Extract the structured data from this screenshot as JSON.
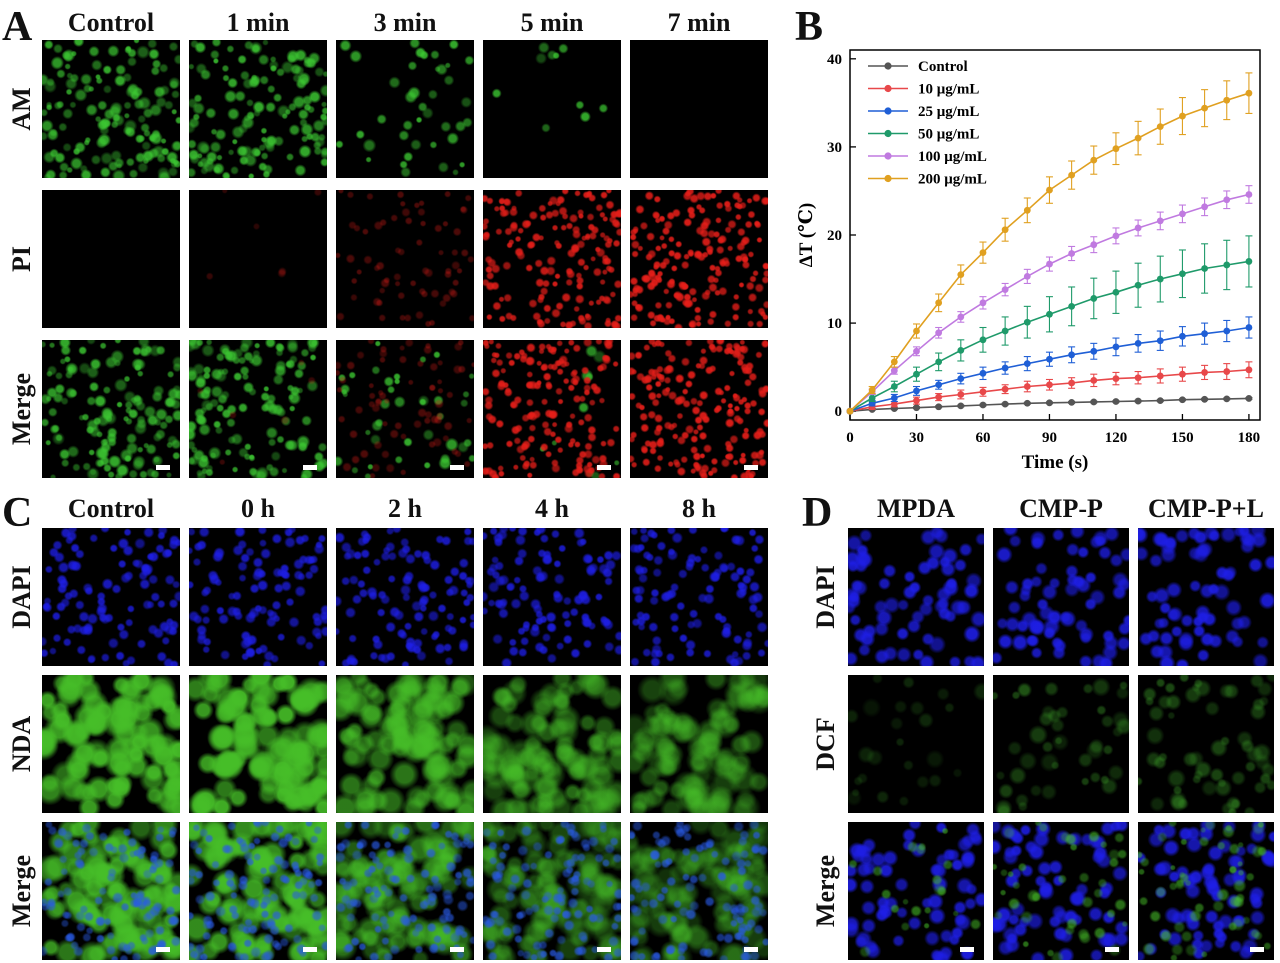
{
  "panels": {
    "A": {
      "label": "A",
      "columns": [
        "Control",
        "1 min",
        "3 min",
        "5 min",
        "7 min"
      ],
      "rows": [
        "AM",
        "PI",
        "Merge"
      ]
    },
    "B": {
      "label": "B"
    },
    "C": {
      "label": "C",
      "columns": [
        "Control",
        "0 h",
        "2 h",
        "4 h",
        "8 h"
      ],
      "rows": [
        "DAPI",
        "NDA",
        "Merge"
      ]
    },
    "D": {
      "label": "D",
      "columns": [
        "MPDA",
        "CMP-P",
        "CMP-P+L"
      ],
      "rows": [
        "DAPI",
        "DCF",
        "Merge"
      ]
    }
  },
  "colors": {
    "am_green": "#2fbf2f",
    "pi_red": "#e0201a",
    "dapi_blue": "#1a1ad8",
    "nda_green": "#3fb52a",
    "dcf_green": "#2a6a1e"
  },
  "chart_data": {
    "type": "line",
    "title": "",
    "xlabel": "Time (s)",
    "ylabel": "ΔT (℃)",
    "xlim": [
      0,
      185
    ],
    "ylim": [
      -1,
      41
    ],
    "xticks": [
      0,
      30,
      60,
      90,
      120,
      150,
      180
    ],
    "yticks": [
      0,
      10,
      20,
      30,
      40
    ],
    "legend_position": "top-left",
    "grid": false,
    "x": [
      0,
      10,
      20,
      30,
      40,
      50,
      60,
      70,
      80,
      90,
      100,
      110,
      120,
      130,
      140,
      150,
      160,
      170,
      180
    ],
    "series": [
      {
        "name": "Control",
        "color": "#555555",
        "values": [
          0,
          0.2,
          0.3,
          0.4,
          0.5,
          0.6,
          0.7,
          0.8,
          0.9,
          0.95,
          1.0,
          1.05,
          1.1,
          1.15,
          1.2,
          1.3,
          1.35,
          1.4,
          1.45
        ],
        "errors": [
          0,
          0.1,
          0.1,
          0.1,
          0.1,
          0.1,
          0.1,
          0.1,
          0.1,
          0.1,
          0.1,
          0.1,
          0.1,
          0.1,
          0.1,
          0.1,
          0.1,
          0.1,
          0.1
        ]
      },
      {
        "name": "10 μg/mL",
        "color": "#e8484a",
        "values": [
          0,
          0.5,
          0.8,
          1.2,
          1.6,
          1.9,
          2.2,
          2.5,
          2.8,
          3.0,
          3.2,
          3.5,
          3.7,
          3.8,
          4.0,
          4.2,
          4.4,
          4.5,
          4.7
        ],
        "errors": [
          0,
          0.3,
          0.3,
          0.4,
          0.4,
          0.5,
          0.5,
          0.5,
          0.6,
          0.6,
          0.6,
          0.7,
          0.7,
          0.7,
          0.8,
          0.8,
          0.8,
          0.9,
          0.9
        ]
      },
      {
        "name": "25 μg/mL",
        "color": "#1f5fd6",
        "values": [
          0,
          0.9,
          1.5,
          2.3,
          3.0,
          3.7,
          4.3,
          4.9,
          5.4,
          5.9,
          6.4,
          6.8,
          7.3,
          7.7,
          8.0,
          8.5,
          8.8,
          9.1,
          9.5
        ],
        "errors": [
          0,
          0.3,
          0.4,
          0.5,
          0.5,
          0.6,
          0.7,
          0.7,
          0.8,
          0.8,
          0.9,
          0.9,
          1.0,
          1.0,
          1.1,
          1.1,
          1.2,
          1.2,
          1.2
        ]
      },
      {
        "name": "50 μg/mL",
        "color": "#1f9a6a",
        "values": [
          0,
          1.5,
          2.8,
          4.2,
          5.6,
          6.9,
          8.1,
          9.1,
          10.1,
          11.0,
          11.9,
          12.8,
          13.5,
          14.3,
          15.0,
          15.6,
          16.2,
          16.6,
          17.0
        ],
        "errors": [
          0,
          0.4,
          0.6,
          0.8,
          1.0,
          1.2,
          1.4,
          1.6,
          1.8,
          2.0,
          2.2,
          2.3,
          2.4,
          2.5,
          2.6,
          2.7,
          2.8,
          2.8,
          2.9
        ]
      },
      {
        "name": "100 μg/mL",
        "color": "#c07ae0",
        "values": [
          0,
          2.2,
          4.6,
          6.8,
          8.9,
          10.7,
          12.3,
          13.8,
          15.3,
          16.7,
          17.9,
          18.9,
          19.9,
          20.8,
          21.6,
          22.4,
          23.2,
          24.0,
          24.6
        ],
        "errors": [
          0,
          0.3,
          0.4,
          0.5,
          0.6,
          0.6,
          0.7,
          0.7,
          0.8,
          0.8,
          0.8,
          0.9,
          0.9,
          0.9,
          1.0,
          1.0,
          1.0,
          1.0,
          1.0
        ]
      },
      {
        "name": "200 μg/mL",
        "color": "#e0a020",
        "values": [
          0,
          2.4,
          5.6,
          9.1,
          12.3,
          15.5,
          18.0,
          20.6,
          22.8,
          25.1,
          26.8,
          28.5,
          29.8,
          31.0,
          32.3,
          33.5,
          34.4,
          35.3,
          36.1
        ],
        "errors": [
          0,
          0.4,
          0.6,
          0.8,
          1.0,
          1.1,
          1.2,
          1.3,
          1.4,
          1.5,
          1.6,
          1.6,
          1.8,
          1.9,
          2.0,
          2.1,
          2.1,
          2.2,
          2.3
        ]
      }
    ]
  }
}
